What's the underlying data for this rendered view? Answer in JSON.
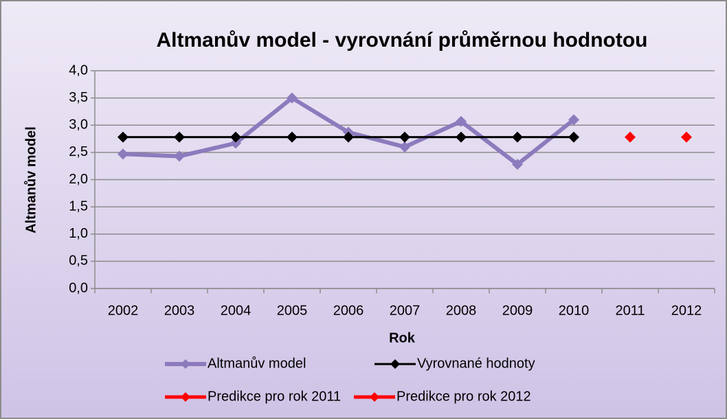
{
  "chart_data": {
    "type": "line",
    "title": "Altmanův model - vyrovnání průměrnou hodnotou",
    "x_label": "Rok",
    "y_label": "Altmanův model",
    "categories": [
      "2002",
      "2003",
      "2004",
      "2005",
      "2006",
      "2007",
      "2008",
      "2009",
      "2010",
      "2011",
      "2012"
    ],
    "series": [
      {
        "name": "Altmanův model",
        "color": "#8c7bbd",
        "width": 6,
        "values": [
          2.47,
          2.43,
          2.67,
          3.5,
          2.87,
          2.6,
          3.07,
          2.28,
          3.1,
          null,
          null
        ]
      },
      {
        "name": "Vyrovnané hodnoty",
        "color": "#000000",
        "width": 3,
        "values": [
          2.78,
          2.78,
          2.78,
          2.78,
          2.78,
          2.78,
          2.78,
          2.78,
          2.78,
          null,
          null
        ]
      },
      {
        "name": "Predikce pro rok 2011",
        "color": "#ff0000",
        "width": 5,
        "values": [
          null,
          null,
          null,
          null,
          null,
          null,
          null,
          null,
          null,
          2.78,
          null
        ]
      },
      {
        "name": "Predikce pro rok 2012",
        "color": "#ff0000",
        "width": 5,
        "values": [
          null,
          null,
          null,
          null,
          null,
          null,
          null,
          null,
          null,
          null,
          2.78
        ]
      }
    ],
    "ylim": [
      0,
      4
    ],
    "yticks": [
      {
        "value": 0,
        "label": "0,0"
      },
      {
        "value": 0.5,
        "label": "0,5"
      },
      {
        "value": 1,
        "label": "1,0"
      },
      {
        "value": 1.5,
        "label": "1,5"
      },
      {
        "value": 2,
        "label": "2,0"
      },
      {
        "value": 2.5,
        "label": "2,5"
      },
      {
        "value": 3,
        "label": "3,0"
      },
      {
        "value": 3.5,
        "label": "3,5"
      },
      {
        "value": 4,
        "label": "4,0"
      }
    ],
    "grid": true,
    "legend": "bottom"
  }
}
